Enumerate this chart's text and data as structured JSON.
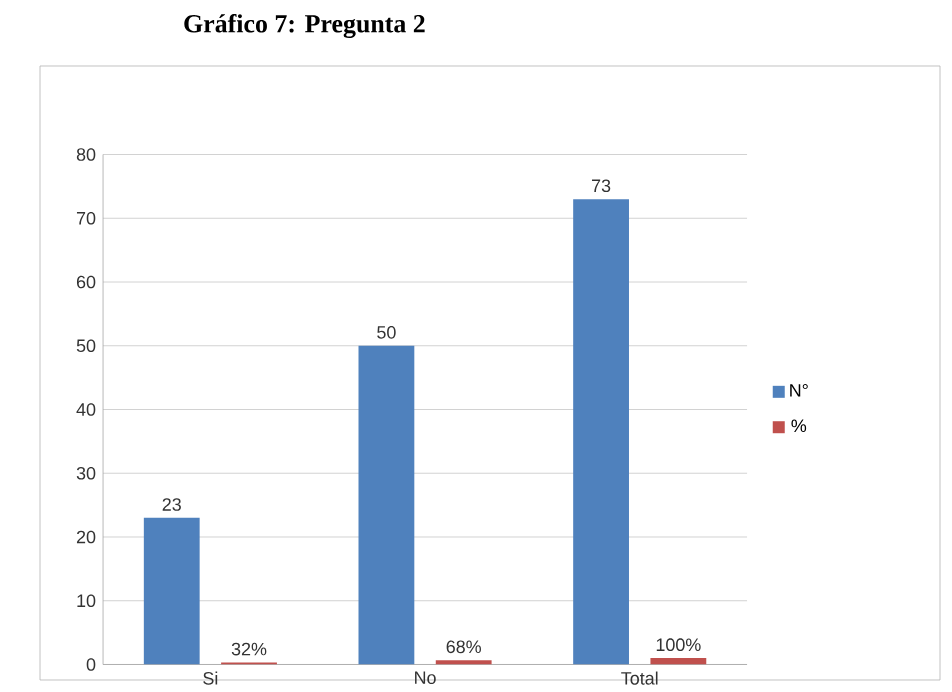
{
  "chart_data": {
    "type": "bar",
    "title": "**Gráfico 7: Pregunta 2**",
    "categories": [
      "Si",
      "No",
      "Total"
    ],
    "series": [
      {
        "name": "N°",
        "color": "#4f81bd",
        "values": [
          23,
          50,
          73
        ],
        "value_labels": [
          "23",
          "50",
          "73"
        ]
      },
      {
        "name": "%",
        "color": "#c0504d",
        "values": [
          0.32,
          0.68,
          1
        ],
        "value_labels": [
          "32%",
          "68%",
          "100%"
        ]
      }
    ],
    "ylim": [
      0,
      80
    ],
    "yticks": [
      0,
      10,
      20,
      30,
      40,
      50,
      60,
      70,
      80
    ],
    "grid": "y",
    "legend": "right"
  }
}
